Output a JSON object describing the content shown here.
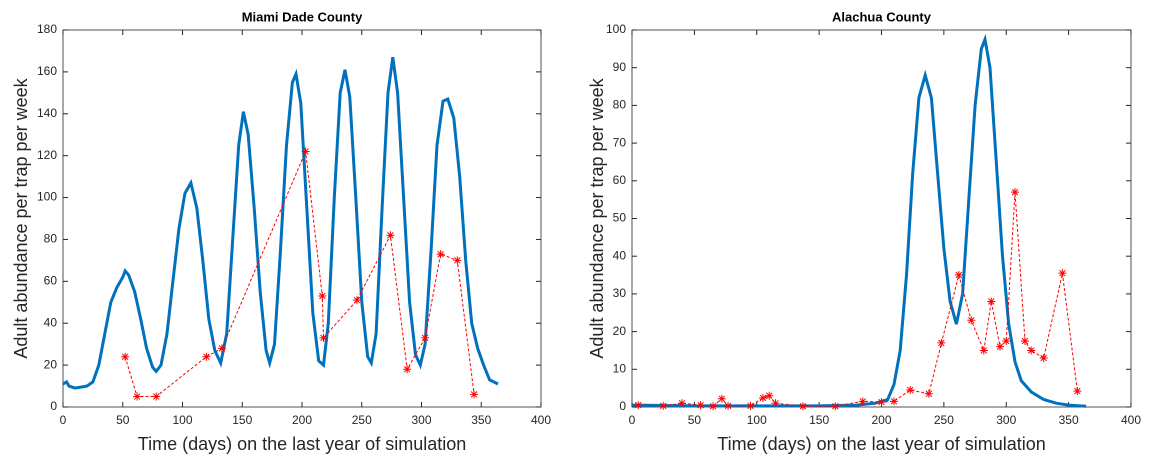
{
  "chart_data": [
    {
      "type": "line",
      "title": "Miami Dade County",
      "x_label": "Time (days) on the last year of simulation",
      "y_label": "Adult abundance per trap per week",
      "xlim": [
        0,
        400
      ],
      "xticks": [
        0,
        50,
        100,
        150,
        200,
        250,
        300,
        350,
        400
      ],
      "ylim": [
        0,
        180
      ],
      "yticks": [
        0,
        20,
        40,
        60,
        80,
        100,
        120,
        140,
        160,
        180
      ],
      "series": [
        {
          "color": "#0072bd",
          "line_style": "solid",
          "marker": "none",
          "x": [
            0,
            3,
            5,
            10,
            20,
            25,
            30,
            35,
            40,
            45,
            50,
            52,
            55,
            60,
            65,
            70,
            75,
            78,
            82,
            87,
            92,
            97,
            102,
            107,
            112,
            117,
            122,
            127,
            132,
            137,
            142,
            147,
            151,
            155,
            160,
            165,
            170,
            173,
            177,
            182,
            187,
            192,
            195,
            199,
            204,
            209,
            214,
            218,
            222,
            227,
            232,
            236,
            240,
            245,
            250,
            255,
            258,
            262,
            267,
            272,
            276,
            280,
            285,
            290,
            295,
            299,
            303,
            308,
            313,
            318,
            322,
            327,
            332,
            337,
            342,
            347,
            352,
            357,
            364
          ],
          "values": [
            11,
            12,
            10,
            9,
            10,
            12,
            20,
            35,
            50,
            57,
            62,
            65,
            63,
            55,
            42,
            28,
            19,
            17,
            20,
            35,
            60,
            85,
            102,
            107,
            95,
            70,
            42,
            27,
            21,
            35,
            80,
            125,
            141,
            130,
            95,
            55,
            27,
            21,
            30,
            75,
            125,
            155,
            159,
            145,
            95,
            45,
            22,
            20,
            40,
            100,
            150,
            161,
            148,
            100,
            50,
            24,
            21,
            35,
            95,
            150,
            167,
            150,
            100,
            50,
            25,
            20,
            30,
            75,
            125,
            146,
            147,
            138,
            110,
            70,
            40,
            28,
            20,
            13,
            11
          ]
        },
        {
          "color": "#ff0000",
          "line_style": "dashed",
          "marker": "*",
          "x": [
            52,
            62,
            78,
            120,
            133,
            203,
            217,
            218,
            246,
            274,
            288,
            303,
            316,
            330,
            344
          ],
          "values": [
            24,
            5,
            5,
            24,
            28,
            122,
            53,
            33,
            51,
            82,
            18,
            33,
            73,
            70,
            6
          ]
        }
      ]
    },
    {
      "type": "line",
      "title": "Alachua County",
      "x_label": "Time (days) on the last year of simulation",
      "y_label": "Adult abundance per trap per week",
      "xlim": [
        0,
        400
      ],
      "xticks": [
        0,
        50,
        100,
        150,
        200,
        250,
        300,
        350,
        400
      ],
      "ylim": [
        0,
        100
      ],
      "yticks": [
        0,
        10,
        20,
        30,
        40,
        50,
        60,
        70,
        80,
        90,
        100
      ],
      "series": [
        {
          "color": "#0072bd",
          "line_style": "solid",
          "marker": "none",
          "x": [
            0,
            50,
            100,
            150,
            180,
            195,
            205,
            210,
            215,
            220,
            225,
            230,
            235,
            240,
            245,
            250,
            255,
            260,
            265,
            270,
            275,
            280,
            283,
            287,
            292,
            297,
            302,
            307,
            312,
            320,
            330,
            340,
            350,
            364
          ],
          "values": [
            0.5,
            0.3,
            0.3,
            0.3,
            0.5,
            1,
            2,
            6,
            15,
            35,
            62,
            82,
            88,
            82,
            62,
            42,
            28,
            22,
            30,
            55,
            80,
            95,
            97.5,
            90,
            65,
            40,
            22,
            12,
            7,
            4,
            2,
            1,
            0.5,
            0.2
          ]
        },
        {
          "color": "#ff0000",
          "line_style": "dashed",
          "marker": "*",
          "x": [
            5,
            25,
            40,
            55,
            65,
            72,
            77,
            95,
            105,
            110,
            115,
            137,
            163,
            185,
            200,
            210,
            223,
            238,
            248,
            262,
            272,
            282,
            288,
            295,
            300,
            307,
            315,
            320,
            330,
            345,
            357
          ],
          "values": [
            0.5,
            0.3,
            1,
            0.5,
            0.2,
            2.2,
            0.3,
            0.3,
            2.4,
            3,
            1,
            0.2,
            0.2,
            1.5,
            1.3,
            1.5,
            4.5,
            3.5,
            17,
            35,
            23,
            15,
            28,
            16,
            17.5,
            57,
            17.5,
            15,
            13,
            35.5,
            4.2
          ]
        }
      ]
    }
  ]
}
